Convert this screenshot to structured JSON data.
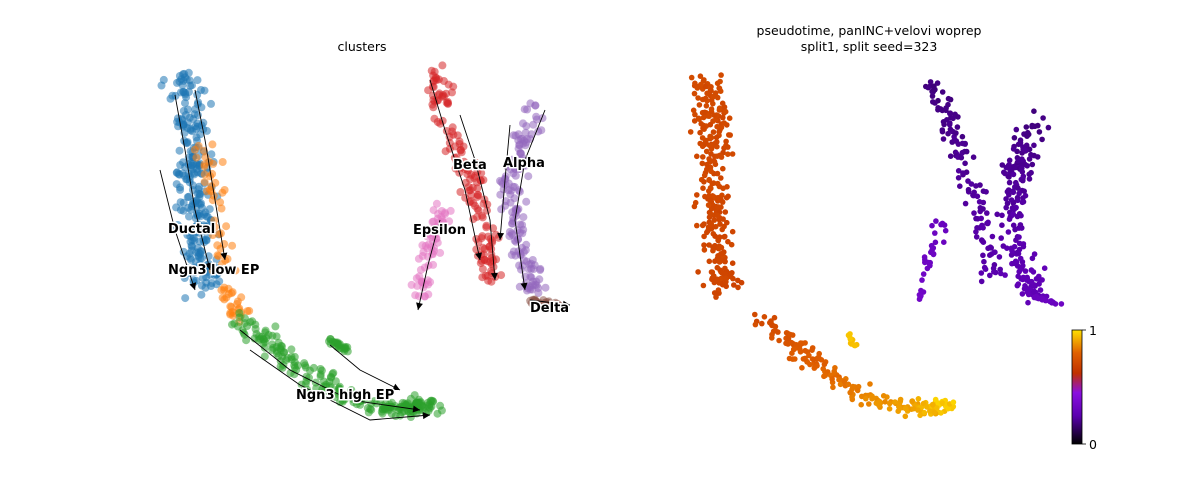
{
  "panels": {
    "left": {
      "title": "clusters"
    },
    "right": {
      "title_line1": "pseudotime, panINC+velovi woprep",
      "title_line2": "split1, split seed=323"
    }
  },
  "chart_data": [
    {
      "type": "scatter",
      "title": "clusters",
      "axes": "off",
      "overlay": "velocity stream arrows",
      "clusters": [
        {
          "name": "Ductal",
          "color": "#1f77b4"
        },
        {
          "name": "Ngn3 low EP",
          "color": "#ff7f0e"
        },
        {
          "name": "Ngn3 high EP",
          "color": "#2ca02c"
        },
        {
          "name": "Beta",
          "color": "#d62728"
        },
        {
          "name": "Alpha",
          "color": "#9467bd"
        },
        {
          "name": "Epsilon",
          "color": "#e377c2"
        },
        {
          "name": "Delta",
          "color": "#8c564b"
        }
      ]
    },
    {
      "type": "scatter",
      "title": "pseudotime, panINC+velovi woprep\nsplit1, split seed=323",
      "axes": "off",
      "colormap": "gnuplot",
      "colorbar": {
        "min": 0,
        "max": 1,
        "ticks": [
          "0",
          "1"
        ]
      }
    }
  ]
}
